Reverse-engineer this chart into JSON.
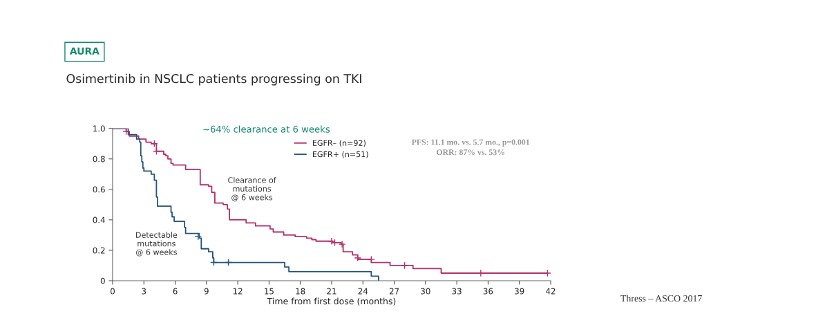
{
  "chart_data": {
    "type": "step",
    "title": "Osimertinib in NSCLC patients progressing on TKI",
    "subtitle": "AURA",
    "xlabel": "Time from first dose (months)",
    "series": [
      {
        "name": "EGFR– (n=92)",
        "color": "#b3306e",
        "x": [
          0,
          1.3,
          1.6,
          2.5,
          3.2,
          3.7,
          4.2,
          4.9,
          5.1,
          5.3,
          5.6,
          5.8,
          7.0,
          8.4,
          9.2,
          9.5,
          9.8,
          10.6,
          11.0,
          11.2,
          12.0,
          12.8,
          13.7,
          15.1,
          15.4,
          16.4,
          17.5,
          18.6,
          19.1,
          19.5,
          21.1,
          21.9,
          22.1,
          23.0,
          23.5,
          24.8,
          26.6,
          28.8,
          31.5,
          41.7
        ],
        "values": [
          1.0,
          0.98,
          0.95,
          0.93,
          0.91,
          0.9,
          0.85,
          0.83,
          0.82,
          0.8,
          0.77,
          0.76,
          0.73,
          0.63,
          0.62,
          0.58,
          0.51,
          0.5,
          0.47,
          0.4,
          0.4,
          0.38,
          0.36,
          0.34,
          0.32,
          0.3,
          0.29,
          0.28,
          0.27,
          0.26,
          0.25,
          0.24,
          0.19,
          0.17,
          0.14,
          0.12,
          0.1,
          0.08,
          0.05,
          0.05
        ]
      },
      {
        "name": "EGFR+ (n=51)",
        "color": "#24557a",
        "x": [
          0,
          1.5,
          2.3,
          2.6,
          2.7,
          2.8,
          2.9,
          3.0,
          3.7,
          4.0,
          4.2,
          4.3,
          5.6,
          5.7,
          5.9,
          6.9,
          7.0,
          8.3,
          8.5,
          9.2,
          9.6,
          9.7,
          16.5,
          16.9,
          24.8,
          25.5
        ],
        "values": [
          1.0,
          0.96,
          0.93,
          0.91,
          0.82,
          0.78,
          0.74,
          0.72,
          0.7,
          0.66,
          0.55,
          0.49,
          0.45,
          0.42,
          0.39,
          0.35,
          0.31,
          0.28,
          0.21,
          0.19,
          0.15,
          0.12,
          0.09,
          0.06,
          0.03,
          0.0
        ]
      },
      {
        "color": "#b3306e",
        "type": "scatter",
        "marker": "cross",
        "x": [
          1.3,
          4.0,
          4.2,
          21.0,
          21.3,
          22.0,
          23.5,
          24.8,
          28.0,
          35.3,
          41.7
        ],
        "values": [
          0.98,
          0.9,
          0.85,
          0.26,
          0.25,
          0.24,
          0.15,
          0.14,
          0.1,
          0.05,
          0.05
        ]
      },
      {
        "color": "#24557a",
        "type": "scatter",
        "marker": "cross",
        "x": [
          8.2,
          9.7,
          11.1
        ],
        "values": [
          0.29,
          0.12,
          0.12
        ]
      }
    ],
    "xlim": [
      0,
      42
    ],
    "xticks": [
      0,
      3,
      6,
      9,
      12,
      15,
      18,
      21,
      24,
      27,
      30,
      33,
      36,
      39,
      42
    ],
    "ylim": [
      0,
      1.0
    ],
    "yticks": [
      0,
      {
        "value": 0.2,
        "label": "0.2"
      },
      {
        "value": 0.4,
        "label": "0.4"
      },
      {
        "value": 0.6,
        "label": "0.6"
      },
      {
        "value": 0.8,
        "label": "0.8"
      },
      {
        "value": 1.0,
        "label": "1.0"
      }
    ],
    "legend": "top",
    "grid": false,
    "annotations": [
      "~64% clearance at 6 weeks",
      "Clearance of\nmutations\n@ 6 weeks",
      "Detectable\nmutations\n@ 6 weeks",
      "PFS: 11.1 mo. vs. 5.7 mo., p=0.001",
      "ORR: 87% vs. 53%",
      "Thress – ASCO 2017"
    ]
  }
}
